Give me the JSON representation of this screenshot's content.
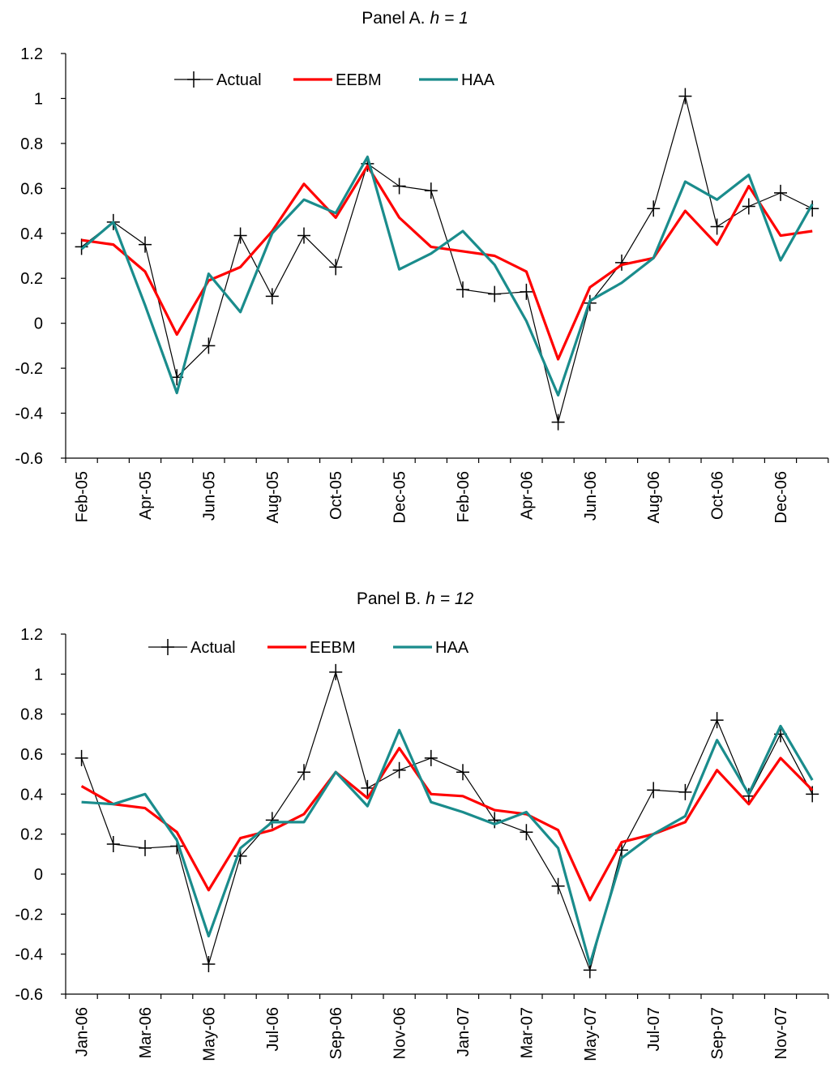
{
  "chart_data": [
    {
      "type": "line",
      "title": [
        "Panel A.",
        "h = 1"
      ],
      "categories": [
        "Feb-05",
        null,
        "Apr-05",
        null,
        "Jun-05",
        null,
        "Aug-05",
        null,
        "Oct-05",
        null,
        "Dec-05",
        null,
        "Feb-06",
        null,
        "Apr-06",
        null,
        "Jun-06",
        null,
        "Aug-06",
        null,
        "Oct-06",
        null,
        "Dec-06",
        null
      ],
      "series": [
        {
          "name": "Actual",
          "color": "#000000",
          "values": [
            0.34,
            0.45,
            0.35,
            -0.24,
            -0.1,
            0.39,
            0.12,
            0.39,
            0.25,
            0.71,
            0.61,
            0.59,
            0.15,
            0.13,
            0.14,
            -0.44,
            0.09,
            0.27,
            0.51,
            1.01,
            0.43,
            0.52,
            0.58,
            0.51
          ]
        },
        {
          "name": "EEBM",
          "color": "#ff0000",
          "values": [
            0.37,
            0.35,
            0.23,
            -0.05,
            0.19,
            0.25,
            0.41,
            0.62,
            0.47,
            0.7,
            0.47,
            0.34,
            0.32,
            0.3,
            0.23,
            -0.16,
            0.16,
            0.26,
            0.29,
            0.5,
            0.35,
            0.61,
            0.39,
            0.41
          ]
        },
        {
          "name": "HAA",
          "color": "#1a8c8c",
          "values": [
            0.33,
            0.45,
            0.08,
            -0.31,
            0.22,
            0.05,
            0.4,
            0.55,
            0.49,
            0.74,
            0.24,
            0.31,
            0.41,
            0.26,
            0.01,
            -0.32,
            0.1,
            0.18,
            0.29,
            0.63,
            0.55,
            0.66,
            0.28,
            0.53
          ]
        }
      ],
      "ylim": [
        -0.6,
        1.2
      ],
      "yticks": [
        -0.6,
        -0.4,
        -0.2,
        0,
        0.2,
        0.4,
        0.6,
        0.8,
        1,
        1.2
      ],
      "grid": false
    },
    {
      "type": "line",
      "title": [
        "Panel B.",
        "h = 12"
      ],
      "categories": [
        "Jan-06",
        null,
        "Mar-06",
        null,
        "May-06",
        null,
        "Jul-06",
        null,
        "Sep-06",
        null,
        "Nov-06",
        null,
        "Jan-07",
        null,
        "Mar-07",
        null,
        "May-07",
        null,
        "Jul-07",
        null,
        "Sep-07",
        null,
        "Nov-07",
        null
      ],
      "series": [
        {
          "name": "Actual",
          "color": "#000000",
          "values": [
            0.58,
            0.15,
            0.13,
            0.14,
            -0.45,
            0.09,
            0.27,
            0.51,
            1.01,
            0.43,
            0.52,
            0.58,
            0.51,
            0.27,
            0.21,
            -0.06,
            -0.48,
            0.12,
            0.42,
            0.41,
            0.77,
            0.39,
            0.7,
            0.4
          ]
        },
        {
          "name": "EEBM",
          "color": "#ff0000",
          "values": [
            0.44,
            0.35,
            0.33,
            0.21,
            -0.08,
            0.18,
            0.22,
            0.3,
            0.51,
            0.38,
            0.63,
            0.4,
            0.39,
            0.32,
            0.3,
            0.22,
            -0.13,
            0.16,
            0.2,
            0.26,
            0.52,
            0.35,
            0.58,
            0.42
          ]
        },
        {
          "name": "HAA",
          "color": "#1a8c8c",
          "values": [
            0.36,
            0.35,
            0.4,
            0.17,
            -0.31,
            0.13,
            0.26,
            0.26,
            0.51,
            0.34,
            0.72,
            0.36,
            0.31,
            0.25,
            0.31,
            0.13,
            -0.45,
            0.08,
            0.2,
            0.29,
            0.67,
            0.4,
            0.74,
            0.47
          ]
        }
      ],
      "ylim": [
        -0.6,
        1.2
      ],
      "yticks": [
        -0.6,
        -0.4,
        -0.2,
        0,
        0.2,
        0.4,
        0.6,
        0.8,
        1,
        1.2
      ],
      "grid": false
    }
  ]
}
